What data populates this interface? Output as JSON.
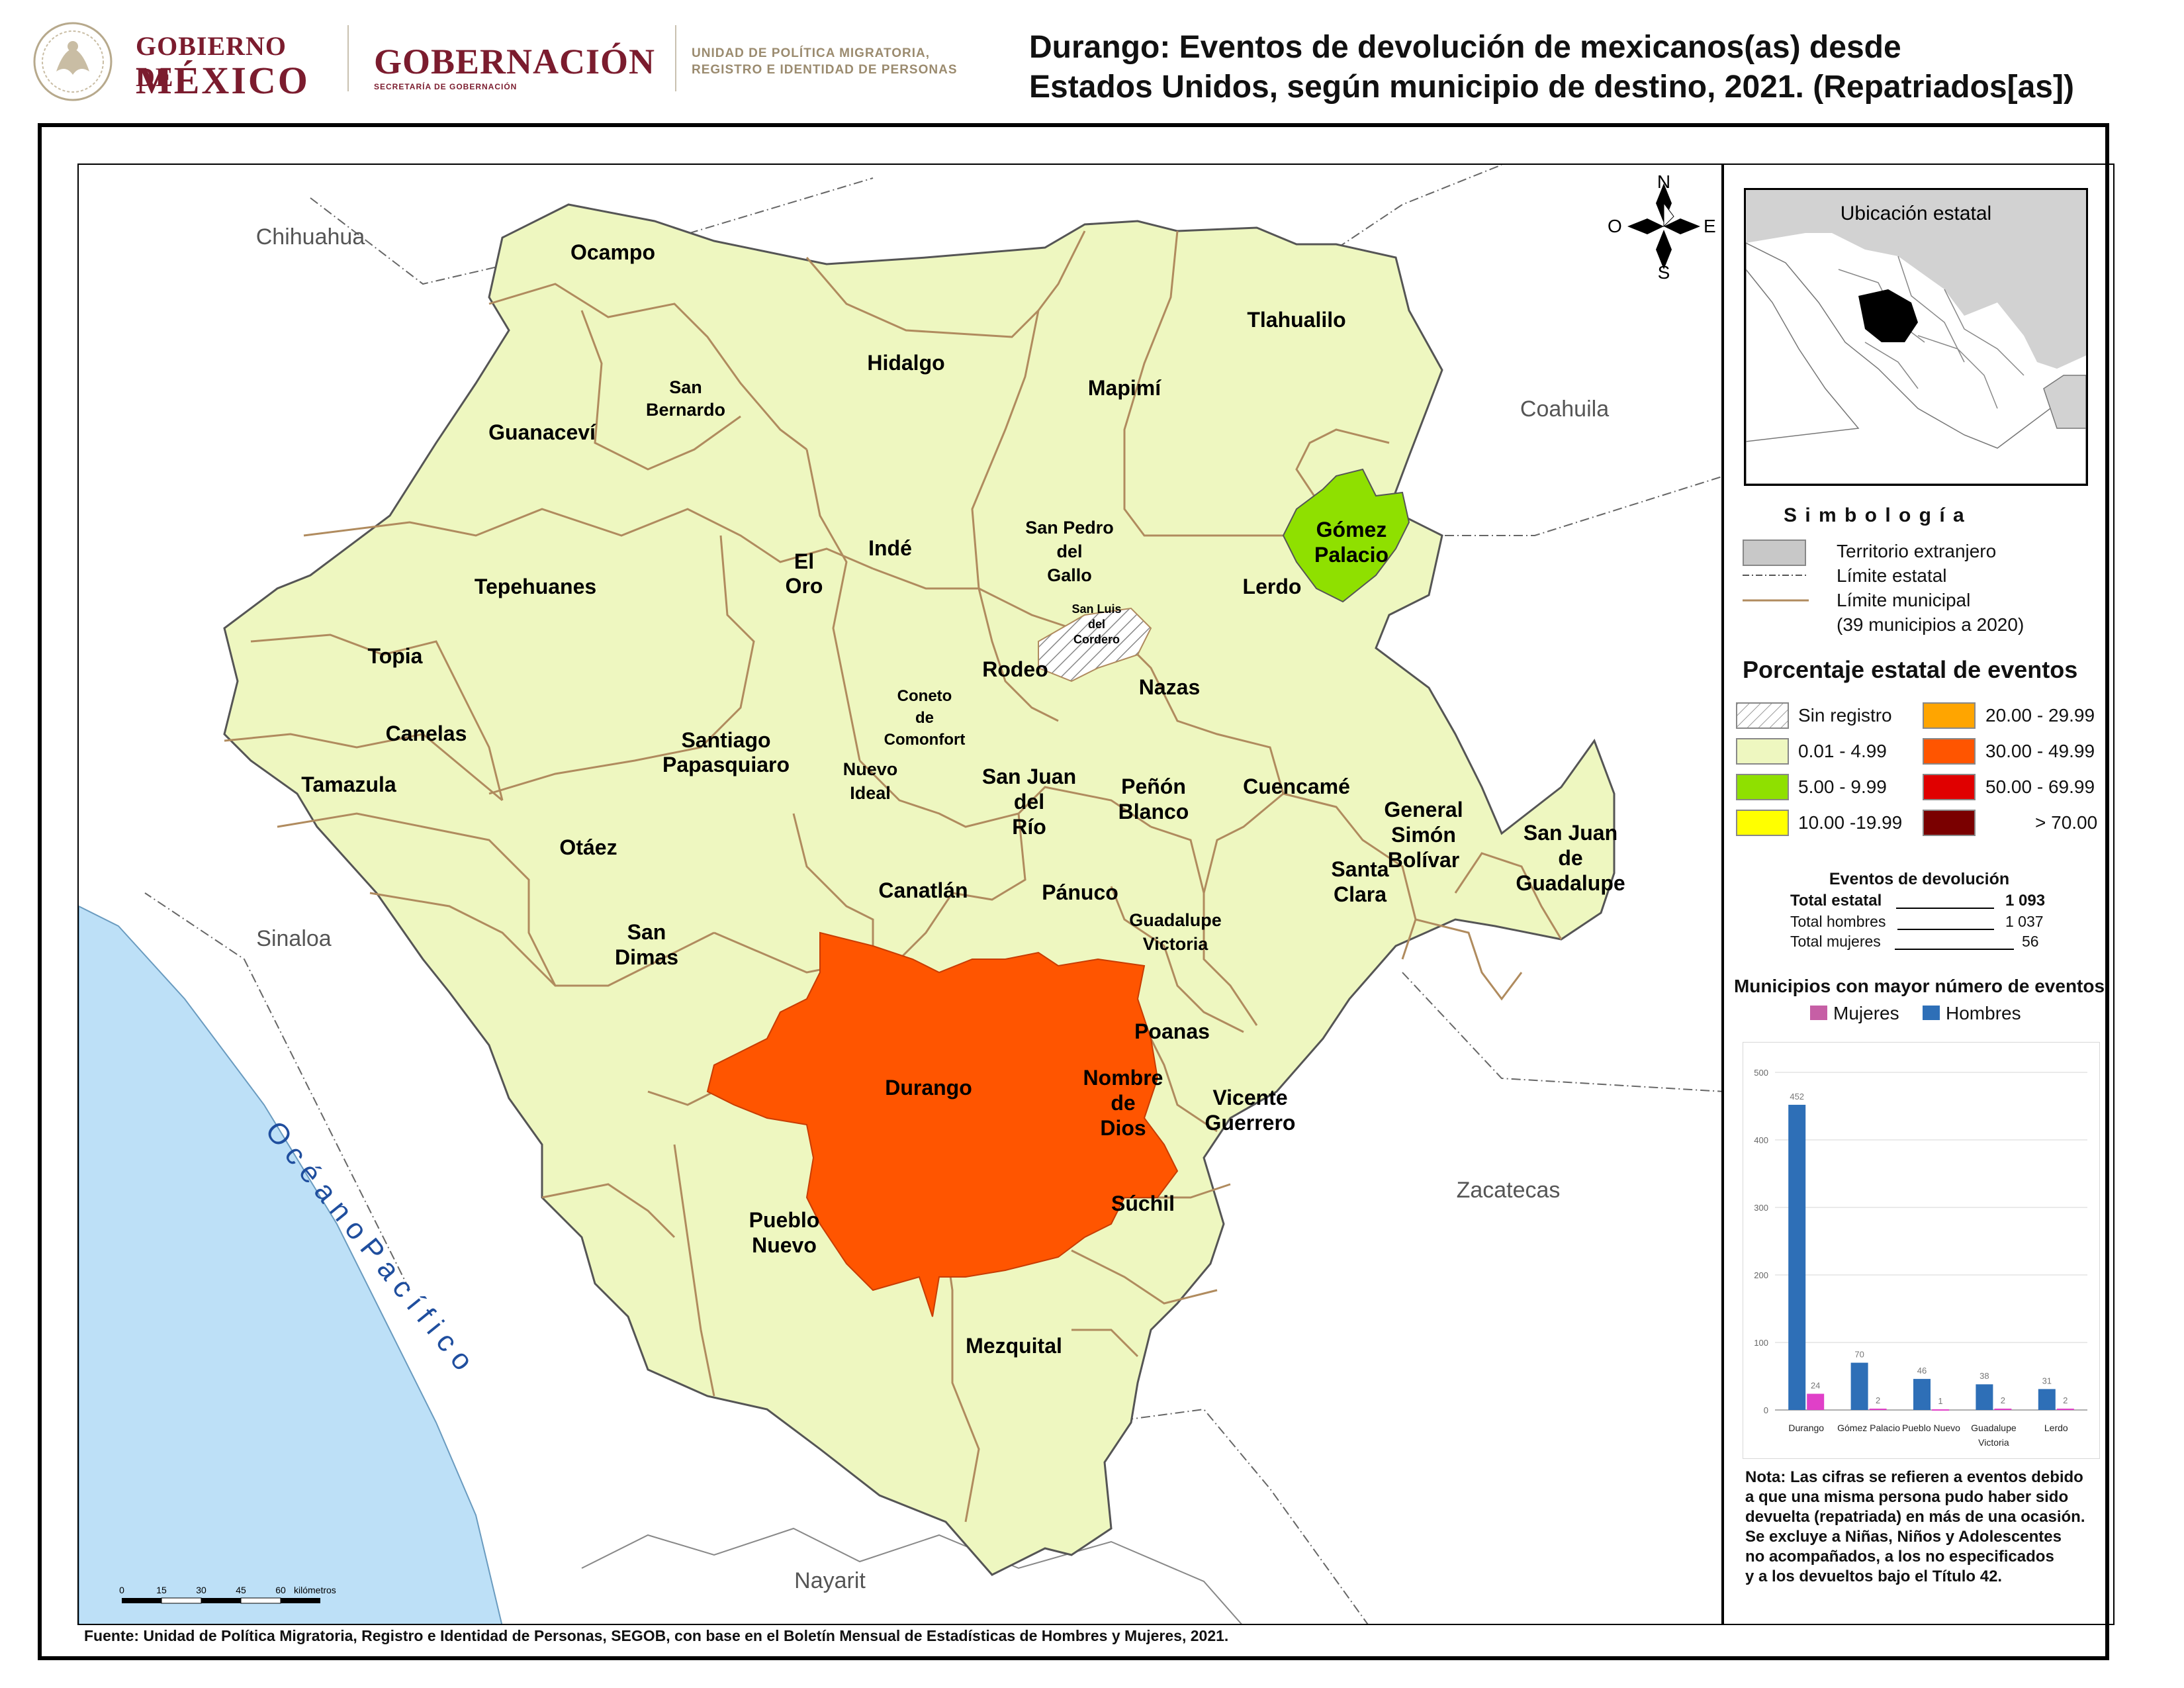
{
  "header": {
    "logo_line1": "GOBIERNO DE",
    "logo_line2": "MÉXICO",
    "ministry": "GOBERNACIÓN",
    "ministry_sub": "SECRETARÍA DE GOBERNACIÓN",
    "unit_line1": "UNIDAD DE POLÍTICA MIGRATORIA,",
    "unit_line2": "REGISTRO E IDENTIDAD DE PERSONAS",
    "title_line1": "Durango: Eventos de devolución de mexicanos(as) desde",
    "title_line2": "Estados Unidos, según municipio de destino, 2021. (Repatriados[as])"
  },
  "colors": {
    "foreign_territory": "#c8c8c8",
    "water": "#bde0f7",
    "class_0_01_4_99": "#eef7c0",
    "class_5_9_99": "#8fe000",
    "class_10_19_99": "#ffff00",
    "class_20_29_99": "#ffa500",
    "class_30_49_99": "#ff5500",
    "class_50_69_99": "#e00000",
    "class_gt_70": "#7a0000",
    "municipal_border": "#b08b5e",
    "chart_hombres": "#2e6fb7",
    "chart_mujeres": "#e040c8"
  },
  "map": {
    "neighbors": {
      "chihuahua": "Chihuahua",
      "coahuila": "Coahuila",
      "sinaloa": "Sinaloa",
      "zacatecas": "Zacatecas",
      "nayarit": "Nayarit"
    },
    "ocean": "O c é a n o   P a c í f i c o",
    "compass": {
      "n": "N",
      "s": "S",
      "e": "E",
      "w": "O"
    },
    "scale": {
      "ticks": [
        "0",
        "15",
        "30",
        "45",
        "60"
      ],
      "unit": "kilómetros"
    },
    "municipalities": {
      "ocampo": "Ocampo",
      "tlahualilo": "Tlahualilo",
      "hidalgo": "Hidalgo",
      "mapimi": "Mapimí",
      "san_bernardo_1": "San",
      "san_bernardo_2": "Bernardo",
      "guanacevi": "Guanaceví",
      "gomez_palacio_1": "Gómez",
      "gomez_palacio_2": "Palacio",
      "san_pedro_1": "San Pedro",
      "san_pedro_2": "del",
      "san_pedro_3": "Gallo",
      "inde": "Indé",
      "el_oro_1": "El",
      "el_oro_2": "Oro",
      "lerdo": "Lerdo",
      "tepehuanes": "Tepehuanes",
      "san_luis_1": "San Luis",
      "san_luis_2": "del",
      "san_luis_3": "Cordero",
      "topia": "Topia",
      "rodeo": "Rodeo",
      "nazas": "Nazas",
      "coneto_1": "Coneto",
      "coneto_2": "de",
      "coneto_3": "Comonfort",
      "canelas": "Canelas",
      "santiago_1": "Santiago",
      "santiago_2": "Papasquiaro",
      "tamazula": "Tamazula",
      "nuevo_ideal_1": "Nuevo",
      "nuevo_ideal_2": "Ideal",
      "san_juan_rio_1": "San Juan",
      "san_juan_rio_2": "del",
      "san_juan_rio_3": "Río",
      "penon_1": "Peñón",
      "penon_2": "Blanco",
      "cuencame": "Cuencamé",
      "gsb_1": "General",
      "gsb_2": "Simón",
      "gsb_3": "Bolívar",
      "sjg_1": "San Juan",
      "sjg_2": "de",
      "sjg_3": "Guadalupe",
      "otaez": "Otáez",
      "santa_clara_1": "Santa",
      "santa_clara_2": "Clara",
      "canatlan": "Canatlán",
      "panuco": "Pánuco",
      "gv_1": "Guadalupe",
      "gv_2": "Victoria",
      "san_dimas_1": "San",
      "san_dimas_2": "Dimas",
      "poanas": "Poanas",
      "durango": "Durango",
      "nombre_1": "Nombre",
      "nombre_2": "de",
      "nombre_3": "Dios",
      "vicente_1": "Vicente",
      "vicente_2": "Guerrero",
      "suchil": "Súchil",
      "pueblo_nuevo_1": "Pueblo",
      "pueblo_nuevo_2": "Nuevo",
      "mezquital": "Mezquital"
    }
  },
  "legend": {
    "inset_title": "Ubicación estatal",
    "symbology_title": "S i m b o l o g í a",
    "foreign": "Territorio extranjero",
    "state_limit": "Límite estatal",
    "municipal_limit": "Límite municipal",
    "municipal_count": "(39 municipios a 2020)",
    "pct_title": "Porcentaje estatal de eventos",
    "classes": {
      "sin_registro": "Sin registro",
      "c1": "0.01  -  4.99",
      "c2": "5.00  -  9.99",
      "c3": "10.00 -19.99",
      "c4": "20.00 - 29.99",
      "c5": "30.00 - 49.99",
      "c6": "50.00 - 69.99",
      "c7": "> 70.00"
    },
    "events_title": "Eventos de devolución",
    "total_label": "Total estatal",
    "total_value": "1 093",
    "men_label": "Total hombres",
    "men_value": "1 037",
    "women_label": "Total mujeres",
    "women_value": "56",
    "note_1": "Nota: Las cifras se refieren a eventos debido",
    "note_2": "a que una misma persona pudo haber sido",
    "note_3": "devuelta (repatriada) en más de una ocasión.",
    "note_4": "Se excluye a Niñas, Niños y Adolescentes",
    "note_5": "no acompañados, a los no especificados",
    "note_6": "y a los devueltos bajo el Título 42."
  },
  "chart_data": {
    "type": "bar",
    "title": "Municipios con mayor número de eventos",
    "categories": [
      "Durango",
      "Gómez Palacio",
      "Pueblo Nuevo",
      "Guadalupe Victoria",
      "Lerdo"
    ],
    "series": [
      {
        "name": "Hombres",
        "values": [
          452,
          70,
          46,
          38,
          31
        ]
      },
      {
        "name": "Mujeres",
        "values": [
          24,
          2,
          1,
          2,
          2
        ]
      }
    ],
    "legend_order": [
      "Mujeres",
      "Hombres"
    ],
    "yticks": [
      "0",
      "100",
      "200",
      "300",
      "400",
      "500"
    ],
    "ylim": [
      0,
      500
    ],
    "grid": true,
    "legend_placement": "top"
  },
  "source": "Fuente: Unidad de Política Migratoria, Registro e Identidad de Personas, SEGOB, con base en el Boletín Mensual de Estadísticas de Hombres y Mujeres, 2021."
}
